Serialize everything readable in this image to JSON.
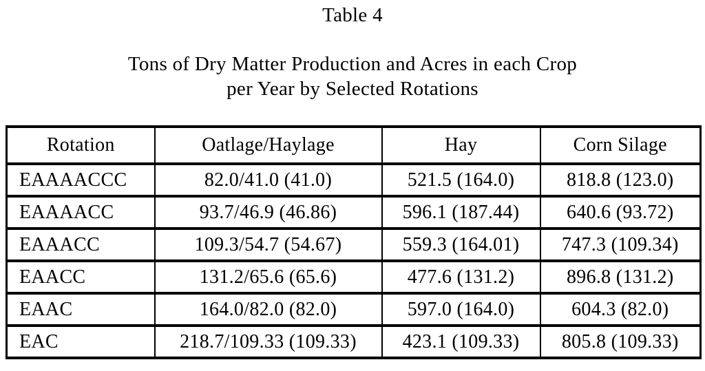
{
  "title": "Table 4",
  "subtitle_line1": "Tons of Dry Matter Production and Acres in each Crop",
  "subtitle_line2": "per Year by Selected Rotations",
  "chart_data": {
    "type": "table",
    "columns": [
      "Rotation",
      "Oatlage/Haylage",
      "Hay",
      "Corn Silage"
    ],
    "rows": [
      [
        "EAAAACCC",
        "82.0/41.0 (41.0)",
        "521.5 (164.0)",
        "818.8 (123.0)"
      ],
      [
        "EAAAACC",
        "93.7/46.9 (46.86)",
        "596.1 (187.44)",
        "640.6 (93.72)"
      ],
      [
        "EAAACC",
        "109.3/54.7 (54.67)",
        "559.3 (164.01)",
        "747.3 (109.34)"
      ],
      [
        "EAACC",
        "131.2/65.6 (65.6)",
        "477.6 (131.2)",
        "896.8 (131.2)"
      ],
      [
        "EAAC",
        "164.0/82.0 (82.0)",
        "597.0 (164.0)",
        "604.3 (82.0)"
      ],
      [
        "EAC",
        "218.7/109.33 (109.33)",
        "423.1 (109.33)",
        "805.8 (109.33)"
      ]
    ]
  },
  "colors": {
    "text": "#000000",
    "border": "#000000",
    "background": "#ffffff"
  }
}
